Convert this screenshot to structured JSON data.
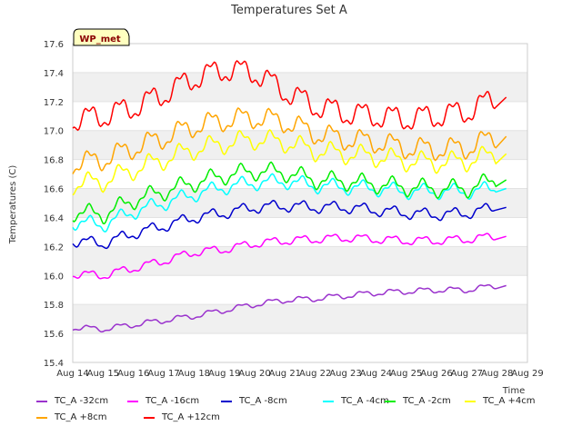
{
  "chart_data": {
    "type": "line",
    "title": "Temperatures Set A",
    "xlabel": "Time",
    "ylabel": "Temperatures (C)",
    "badge": "WP_met",
    "ylim": [
      15.4,
      17.6
    ],
    "yticks": [
      "15.4",
      "15.6",
      "15.8",
      "16.0",
      "16.2",
      "16.4",
      "16.6",
      "16.8",
      "17.0",
      "17.2",
      "17.4",
      "17.6"
    ],
    "xlim": [
      14,
      29
    ],
    "xticks": [
      "Aug 14",
      "Aug 15",
      "Aug 16",
      "Aug 17",
      "Aug 18",
      "Aug 19",
      "Aug 20",
      "Aug 21",
      "Aug 22",
      "Aug 23",
      "Aug 24",
      "Aug 25",
      "Aug 26",
      "Aug 27",
      "Aug 28",
      "Aug 29"
    ],
    "grid": "alternating horizontal bands",
    "legend_position": "bottom",
    "x_daily": [
      14,
      15,
      16,
      17,
      18,
      19,
      20,
      21,
      22,
      23,
      24,
      25,
      26,
      27,
      28
    ],
    "series": [
      {
        "name": "TC_A -32cm",
        "color": "#9a32cd",
        "values": [
          15.64,
          15.63,
          15.66,
          15.69,
          15.72,
          15.76,
          15.8,
          15.83,
          15.84,
          15.86,
          15.88,
          15.89,
          15.9,
          15.9,
          15.93
        ]
      },
      {
        "name": "TC_A -16cm",
        "color": "#ff00ff",
        "values": [
          16.01,
          16.0,
          16.05,
          16.1,
          16.16,
          16.18,
          16.22,
          16.24,
          16.25,
          16.26,
          16.25,
          16.24,
          16.24,
          16.25,
          16.27
        ]
      },
      {
        "name": "TC_A -8cm",
        "color": "#0000cd",
        "values": [
          16.24,
          16.22,
          16.29,
          16.34,
          16.4,
          16.43,
          16.47,
          16.48,
          16.47,
          16.47,
          16.45,
          16.43,
          16.42,
          16.43,
          16.47
        ]
      },
      {
        "name": "TC_A -4cm",
        "color": "#00ffff",
        "values": [
          16.37,
          16.35,
          16.44,
          16.5,
          16.56,
          16.61,
          16.64,
          16.65,
          16.62,
          16.61,
          16.6,
          16.58,
          16.58,
          16.58,
          16.6
        ]
      },
      {
        "name": "TC_A -2cm",
        "color": "#00ee00",
        "values": [
          16.44,
          16.42,
          16.52,
          16.58,
          16.64,
          16.69,
          16.72,
          16.71,
          16.66,
          16.65,
          16.63,
          16.61,
          16.6,
          16.6,
          16.66
        ]
      },
      {
        "name": "TC_A +4cm",
        "color": "#ffff00",
        "values": [
          16.63,
          16.65,
          16.73,
          16.8,
          16.87,
          16.91,
          16.94,
          16.92,
          16.86,
          16.84,
          16.82,
          16.79,
          16.78,
          16.79,
          16.84
        ]
      },
      {
        "name": "TC_A +8cm",
        "color": "#ffa500",
        "values": [
          16.77,
          16.8,
          16.88,
          16.95,
          17.03,
          17.07,
          17.09,
          17.06,
          16.98,
          16.94,
          16.92,
          16.88,
          16.87,
          16.88,
          16.96
        ]
      },
      {
        "name": "TC_A +12cm",
        "color": "#ff0000",
        "values": [
          17.07,
          17.1,
          17.16,
          17.25,
          17.36,
          17.42,
          17.4,
          17.27,
          17.17,
          17.12,
          17.1,
          17.08,
          17.1,
          17.13,
          17.23
        ]
      }
    ]
  }
}
